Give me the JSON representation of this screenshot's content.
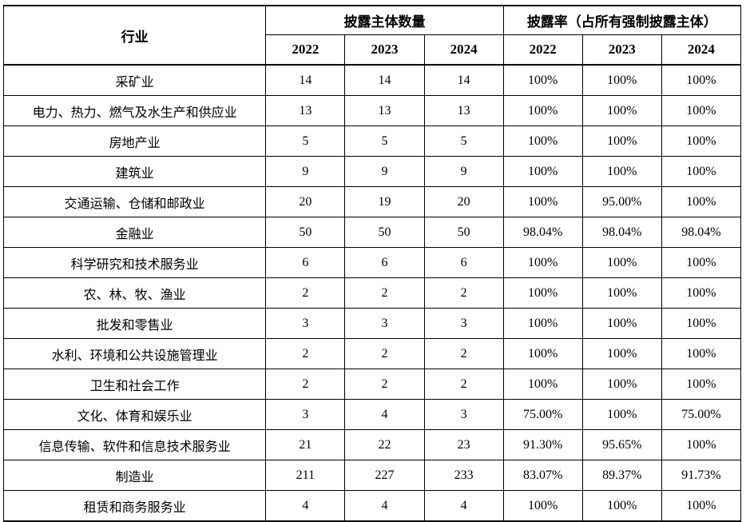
{
  "header": {
    "industry_label": "行业",
    "count_group_label": "披露主体数量",
    "rate_group_label": "披露率（占所有强制披露主体）",
    "years": [
      "2022",
      "2023",
      "2024"
    ]
  },
  "rows": [
    {
      "industry": "采矿业",
      "counts": [
        "14",
        "14",
        "14"
      ],
      "rates": [
        "100%",
        "100%",
        "100%"
      ]
    },
    {
      "industry": "电力、热力、燃气及水生产和供应业",
      "counts": [
        "13",
        "13",
        "13"
      ],
      "rates": [
        "100%",
        "100%",
        "100%"
      ]
    },
    {
      "industry": "房地产业",
      "counts": [
        "5",
        "5",
        "5"
      ],
      "rates": [
        "100%",
        "100%",
        "100%"
      ]
    },
    {
      "industry": "建筑业",
      "counts": [
        "9",
        "9",
        "9"
      ],
      "rates": [
        "100%",
        "100%",
        "100%"
      ]
    },
    {
      "industry": "交通运输、仓储和邮政业",
      "counts": [
        "20",
        "19",
        "20"
      ],
      "rates": [
        "100%",
        "95.00%",
        "100%"
      ]
    },
    {
      "industry": "金融业",
      "counts": [
        "50",
        "50",
        "50"
      ],
      "rates": [
        "98.04%",
        "98.04%",
        "98.04%"
      ]
    },
    {
      "industry": "科学研究和技术服务业",
      "counts": [
        "6",
        "6",
        "6"
      ],
      "rates": [
        "100%",
        "100%",
        "100%"
      ]
    },
    {
      "industry": "农、林、牧、渔业",
      "counts": [
        "2",
        "2",
        "2"
      ],
      "rates": [
        "100%",
        "100%",
        "100%"
      ]
    },
    {
      "industry": "批发和零售业",
      "counts": [
        "3",
        "3",
        "3"
      ],
      "rates": [
        "100%",
        "100%",
        "100%"
      ]
    },
    {
      "industry": "水利、环境和公共设施管理业",
      "counts": [
        "2",
        "2",
        "2"
      ],
      "rates": [
        "100%",
        "100%",
        "100%"
      ]
    },
    {
      "industry": "卫生和社会工作",
      "counts": [
        "2",
        "2",
        "2"
      ],
      "rates": [
        "100%",
        "100%",
        "100%"
      ]
    },
    {
      "industry": "文化、体育和娱乐业",
      "counts": [
        "3",
        "4",
        "3"
      ],
      "rates": [
        "75.00%",
        "100%",
        "75.00%"
      ]
    },
    {
      "industry": "信息传输、软件和信息技术服务业",
      "counts": [
        "21",
        "22",
        "23"
      ],
      "rates": [
        "91.30%",
        "95.65%",
        "100%"
      ]
    },
    {
      "industry": "制造业",
      "counts": [
        "211",
        "227",
        "233"
      ],
      "rates": [
        "83.07%",
        "89.37%",
        "91.73%"
      ]
    },
    {
      "industry": "租赁和商务服务业",
      "counts": [
        "4",
        "4",
        "4"
      ],
      "rates": [
        "100%",
        "100%",
        "100%"
      ]
    }
  ]
}
